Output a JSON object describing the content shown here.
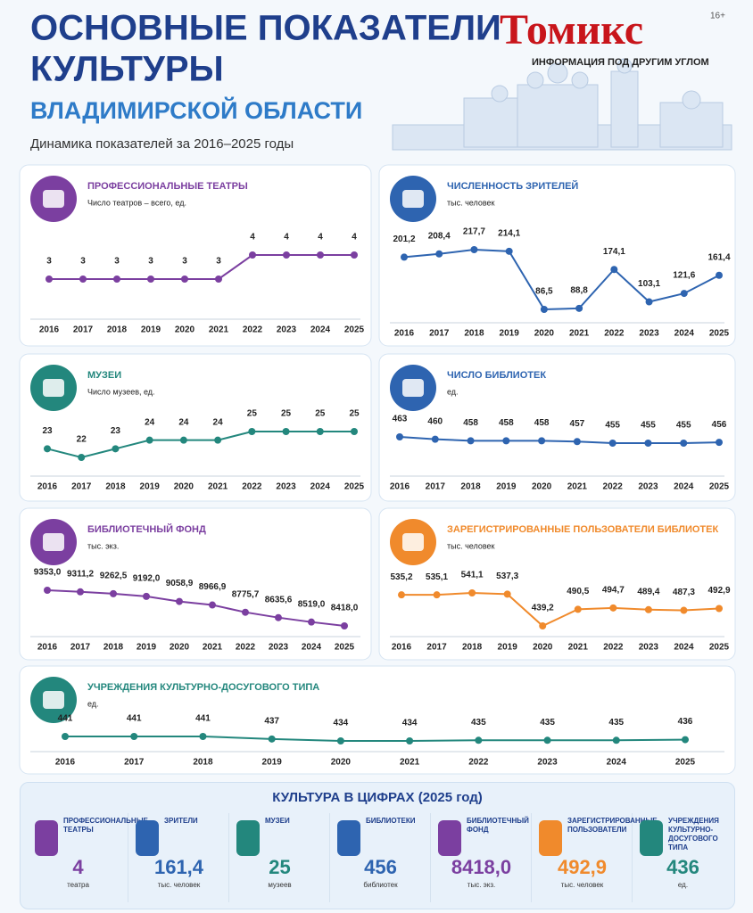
{
  "header": {
    "title_line1": "ОСНОВНЫЕ ПОКАЗАТЕЛИ",
    "title_line2": "КУЛЬТУРЫ",
    "subtitle": "ВЛАДИМИРСКОЙ ОБЛАСТИ",
    "caption": "Динамика показателей за 2016–2025 годы",
    "logo": "Томикс",
    "slogan": "ИНФОРМАЦИЯ ПОД ДРУГИМ УГЛОМ",
    "age": "16+"
  },
  "chart_data": [
    {
      "type": "line",
      "title": "ПРОФЕССИОНАЛЬНЫЕ ТЕАТРЫ",
      "subtitle": "Число театров – всего, ед.",
      "color": "#7b3fa0",
      "categories": [
        "2016",
        "2017",
        "2018",
        "2019",
        "2020",
        "2021",
        "2022",
        "2023",
        "2024",
        "2025"
      ],
      "values": [
        3,
        3,
        3,
        3,
        3,
        3,
        4,
        4,
        4,
        4
      ]
    },
    {
      "type": "line",
      "title": "ЧИСЛЕННОСТЬ ЗРИТЕЛЕЙ",
      "subtitle": "тыс. человек",
      "color": "#2e64b0",
      "categories": [
        "2016",
        "2017",
        "2018",
        "2019",
        "2020",
        "2021",
        "2022",
        "2023",
        "2024",
        "2025"
      ],
      "values": [
        201.2,
        208.4,
        217.7,
        214.1,
        86.5,
        88.8,
        174.1,
        103.1,
        121.6,
        161.4
      ],
      "value_labels": [
        "201,2",
        "208,4",
        "217,7",
        "214,1",
        "86,5",
        "88,8",
        "174,1",
        "103,1",
        "121,6",
        "161,4"
      ]
    },
    {
      "type": "line",
      "title": "МУЗЕИ",
      "subtitle": "Число музеев, ед.",
      "color": "#23877d",
      "categories": [
        "2016",
        "2017",
        "2018",
        "2019",
        "2020",
        "2021",
        "2022",
        "2023",
        "2024",
        "2025"
      ],
      "values": [
        23,
        22,
        23,
        24,
        24,
        24,
        25,
        25,
        25,
        25
      ]
    },
    {
      "type": "line",
      "title": "ЧИСЛО БИБЛИОТЕК",
      "subtitle": "ед.",
      "color": "#2e64b0",
      "categories": [
        "2016",
        "2017",
        "2018",
        "2019",
        "2020",
        "2021",
        "2022",
        "2023",
        "2024",
        "2025"
      ],
      "values": [
        463,
        460,
        458,
        458,
        458,
        457,
        455,
        455,
        455,
        456
      ]
    },
    {
      "type": "line",
      "title": "БИБЛИОТЕЧНЫЙ ФОНД",
      "subtitle": "тыс. экз.",
      "color": "#7b3fa0",
      "categories": [
        "2016",
        "2017",
        "2018",
        "2019",
        "2020",
        "2021",
        "2022",
        "2023",
        "2024",
        "2025"
      ],
      "values": [
        9353.0,
        9311.2,
        9262.5,
        9192.0,
        9058.9,
        8966.9,
        8775.7,
        8635.6,
        8519.0,
        8418.0
      ],
      "value_labels": [
        "9353,0",
        "9311,2",
        "9262,5",
        "9192,0",
        "9058,9",
        "8966,9",
        "8775,7",
        "8635,6",
        "8519,0",
        "8418,0"
      ]
    },
    {
      "type": "line",
      "title": "ЗАРЕГИСТРИРОВАННЫЕ ПОЛЬЗОВАТЕЛИ БИБЛИОТЕК",
      "subtitle": "тыс. человек",
      "color": "#f08a2c",
      "categories": [
        "2016",
        "2017",
        "2018",
        "2019",
        "2020",
        "2021",
        "2022",
        "2023",
        "2024",
        "2025"
      ],
      "values": [
        535.2,
        535.1,
        541.1,
        537.3,
        439.2,
        490.5,
        494.7,
        489.4,
        487.3,
        492.9
      ],
      "value_labels": [
        "535,2",
        "535,1",
        "541,1",
        "537,3",
        "439,2",
        "490,5",
        "494,7",
        "489,4",
        "487,3",
        "492,9"
      ]
    },
    {
      "type": "line",
      "title": "УЧРЕЖДЕНИЯ КУЛЬТУРНО-ДОСУГОВОГО ТИПА",
      "subtitle": "ед.",
      "color": "#23877d",
      "categories": [
        "2016",
        "2017",
        "2018",
        "2019",
        "2020",
        "2021",
        "2022",
        "2023",
        "2024",
        "2025"
      ],
      "values": [
        441,
        441,
        441,
        437,
        434,
        434,
        435,
        435,
        435,
        436
      ]
    }
  ],
  "summary": {
    "title": "КУЛЬТУРА В ЦИФРАХ (2025 год)",
    "items": [
      {
        "label": "ПРОФЕССИОНАЛЬНЫЕ ТЕАТРЫ",
        "value": "4",
        "unit": "театра",
        "color": "#7b3fa0"
      },
      {
        "label": "ЗРИТЕЛИ",
        "value": "161,4",
        "unit": "тыс. человек",
        "color": "#2e64b0"
      },
      {
        "label": "МУЗЕИ",
        "value": "25",
        "unit": "музеев",
        "color": "#23877d"
      },
      {
        "label": "БИБЛИОТЕКИ",
        "value": "456",
        "unit": "библиотек",
        "color": "#2e64b0"
      },
      {
        "label": "БИБЛИОТЕЧНЫЙ ФОНД",
        "value": "8418,0",
        "unit": "тыс. экз.",
        "color": "#7b3fa0"
      },
      {
        "label": "ЗАРЕГИСТРИРОВАННЫЕ ПОЛЬЗОВАТЕЛИ",
        "value": "492,9",
        "unit": "тыс. человек",
        "color": "#f08a2c"
      },
      {
        "label": "УЧРЕЖДЕНИЯ КУЛЬТУРНО-ДОСУГОВОГО ТИПА",
        "value": "436",
        "unit": "ед.",
        "color": "#23877d"
      }
    ]
  }
}
